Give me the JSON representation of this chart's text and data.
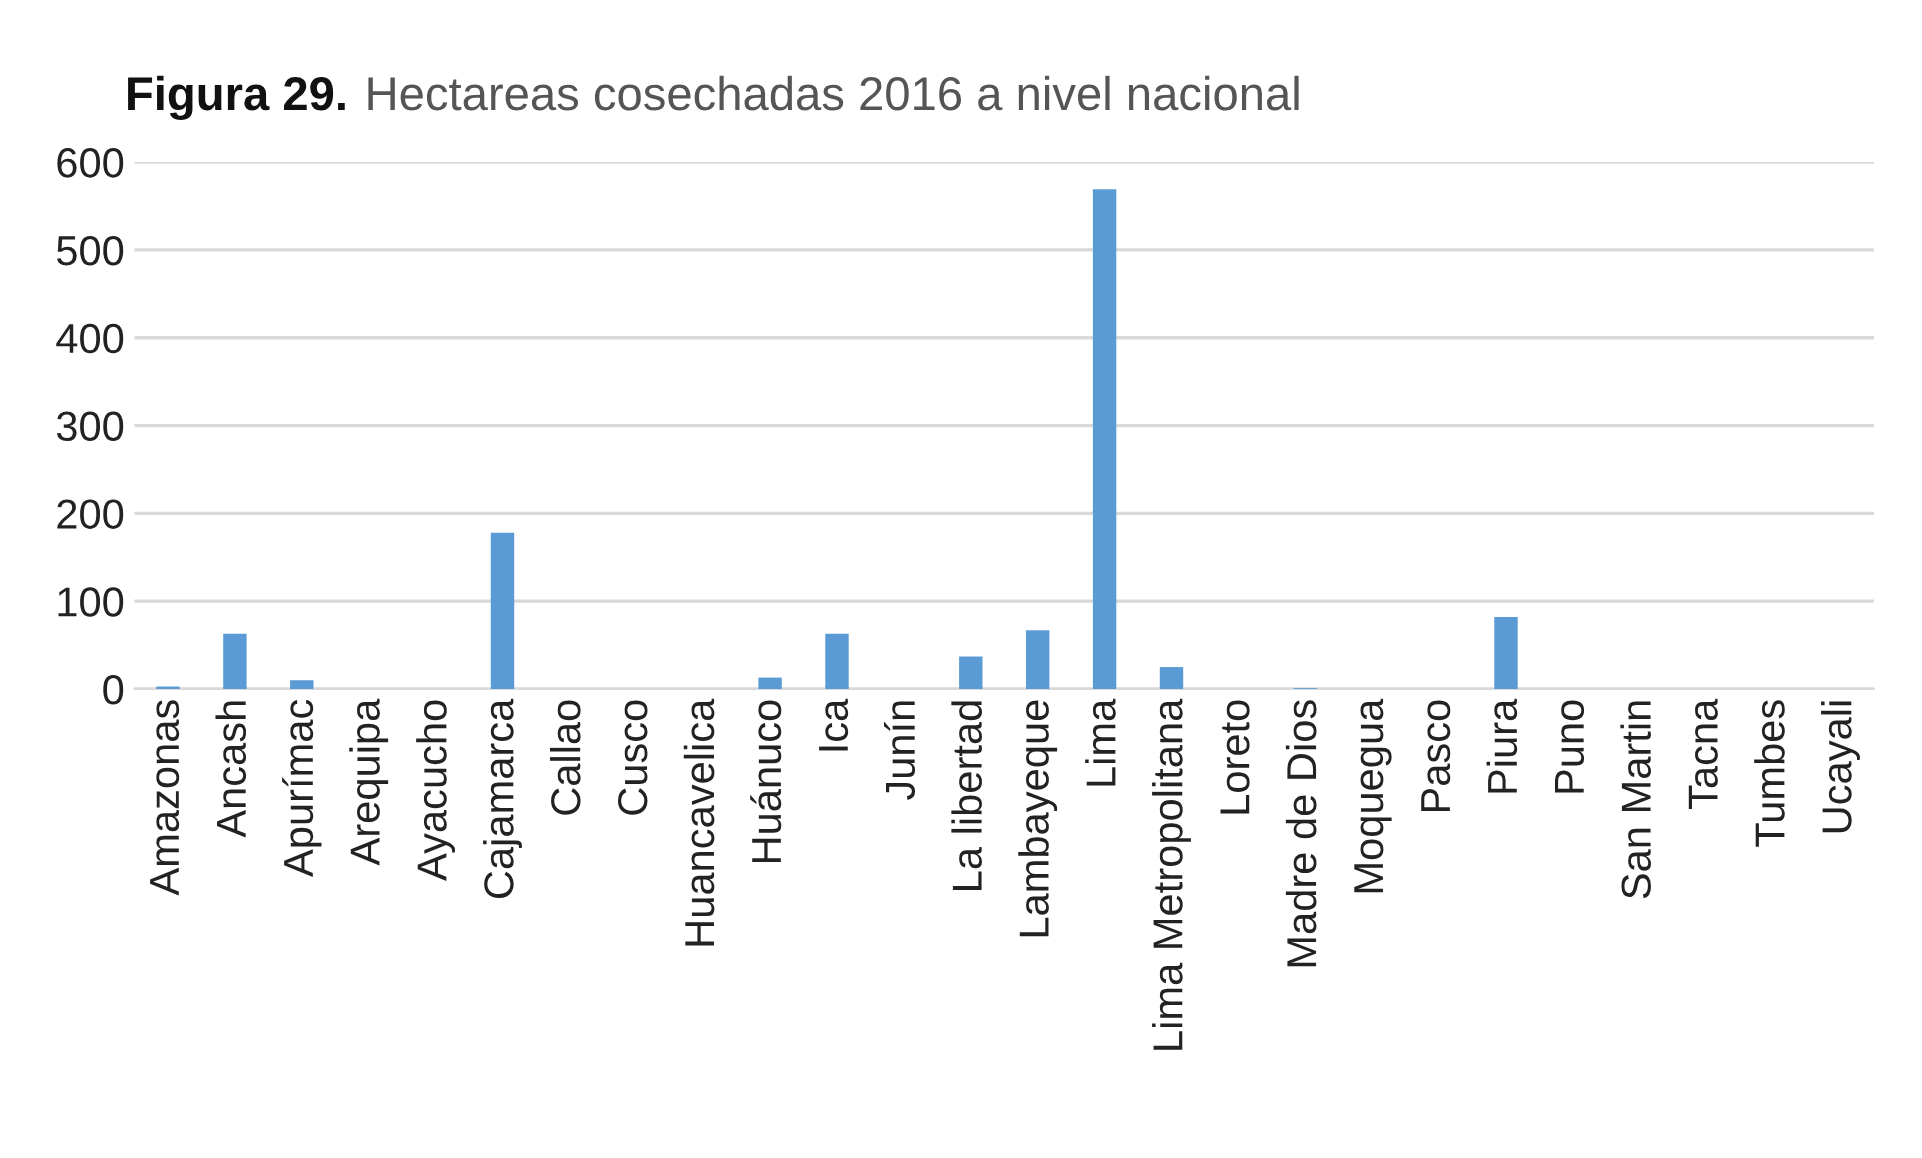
{
  "chart_data": {
    "type": "bar",
    "title": "Figura 29.",
    "subtitle": "Hectareas cosechadas 2016 a nivel nacional",
    "categories": [
      "Amazonas",
      "Ancash",
      "Apurímac",
      "Arequipa",
      "Ayacucho",
      "Cajamarca",
      "Callao",
      "Cusco",
      "Huancavelica",
      "Huánuco",
      "Ica",
      "Junín",
      "La libertad",
      "Lambayeque",
      "Lima",
      "Lima Metropolitana",
      "Loreto",
      "Madre de Dios",
      "Moquegua",
      "Pasco",
      "Piura",
      "Puno",
      "San Martin",
      "Tacna",
      "Tumbes",
      "Ucayali"
    ],
    "values": [
      3,
      63,
      10,
      0,
      0,
      178,
      0,
      0,
      0,
      13,
      63,
      0,
      37,
      67,
      569,
      25,
      0,
      1,
      0,
      0,
      82,
      0,
      0,
      0,
      0,
      0
    ],
    "color": "#5b9bd5",
    "ylim": [
      0,
      600
    ],
    "yticks": [
      0,
      100,
      200,
      300,
      400,
      500,
      600
    ],
    "grid": "y"
  }
}
